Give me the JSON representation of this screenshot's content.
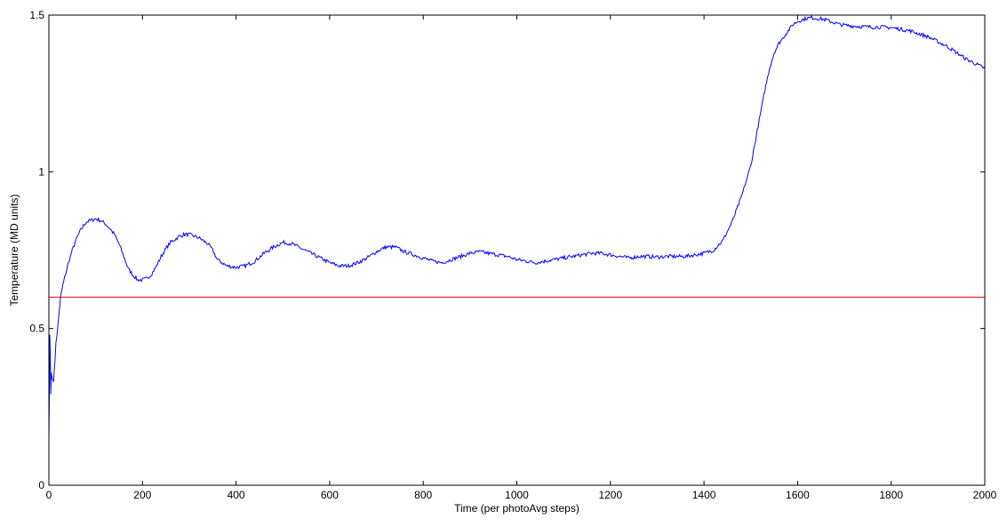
{
  "chart_data": {
    "type": "line",
    "title": "",
    "xlabel": "Time (per photoAvg steps)",
    "ylabel": "Temperature (MD units)",
    "xlim": [
      0,
      2000
    ],
    "ylim": [
      0,
      1.5
    ],
    "xticks": [
      0,
      200,
      400,
      600,
      800,
      1000,
      1200,
      1400,
      1600,
      1800,
      2000
    ],
    "yticks": [
      0,
      0.5,
      1,
      1.5
    ],
    "xtick_labels": [
      "0",
      "200",
      "400",
      "600",
      "800",
      "1000",
      "1200",
      "1400",
      "1600",
      "1800",
      "2000"
    ],
    "ytick_labels": [
      "0",
      "0.5",
      "1",
      "1.5"
    ],
    "grid": false,
    "series": [
      {
        "color": "#0000ff",
        "x": [
          0,
          1,
          2,
          3,
          4,
          5,
          7,
          10,
          15,
          20,
          25,
          30,
          40,
          50,
          60,
          70,
          80,
          90,
          100,
          110,
          120,
          130,
          140,
          150,
          160,
          170,
          180,
          190,
          200,
          210,
          220,
          230,
          240,
          250,
          260,
          270,
          280,
          290,
          300,
          320,
          340,
          350,
          360,
          380,
          400,
          420,
          440,
          460,
          480,
          500,
          520,
          540,
          560,
          580,
          600,
          620,
          640,
          660,
          680,
          700,
          720,
          740,
          760,
          780,
          800,
          820,
          840,
          860,
          880,
          900,
          920,
          940,
          960,
          980,
          1000,
          1020,
          1040,
          1060,
          1080,
          1100,
          1120,
          1140,
          1160,
          1180,
          1200,
          1220,
          1240,
          1260,
          1280,
          1300,
          1320,
          1340,
          1360,
          1380,
          1400,
          1420,
          1440,
          1460,
          1480,
          1500,
          1510,
          1520,
          1530,
          1540,
          1550,
          1560,
          1570,
          1580,
          1590,
          1600,
          1610,
          1620,
          1630,
          1640,
          1650,
          1660,
          1670,
          1680,
          1690,
          1700,
          1720,
          1740,
          1760,
          1780,
          1800,
          1820,
          1840,
          1860,
          1880,
          1900,
          1920,
          1940,
          1960,
          1980,
          2000
        ],
        "y": [
          0.15,
          0.3,
          0.48,
          0.42,
          0.29,
          0.36,
          0.34,
          0.33,
          0.45,
          0.52,
          0.6,
          0.64,
          0.7,
          0.75,
          0.79,
          0.82,
          0.84,
          0.845,
          0.85,
          0.845,
          0.835,
          0.82,
          0.8,
          0.77,
          0.73,
          0.69,
          0.67,
          0.655,
          0.655,
          0.66,
          0.675,
          0.7,
          0.73,
          0.755,
          0.775,
          0.785,
          0.795,
          0.8,
          0.8,
          0.79,
          0.77,
          0.75,
          0.72,
          0.7,
          0.695,
          0.7,
          0.715,
          0.74,
          0.76,
          0.775,
          0.77,
          0.755,
          0.74,
          0.725,
          0.71,
          0.7,
          0.7,
          0.71,
          0.725,
          0.745,
          0.76,
          0.76,
          0.745,
          0.735,
          0.725,
          0.715,
          0.71,
          0.72,
          0.73,
          0.74,
          0.745,
          0.74,
          0.735,
          0.73,
          0.72,
          0.715,
          0.71,
          0.715,
          0.72,
          0.725,
          0.73,
          0.735,
          0.74,
          0.74,
          0.735,
          0.73,
          0.725,
          0.73,
          0.73,
          0.728,
          0.73,
          0.73,
          0.73,
          0.735,
          0.74,
          0.75,
          0.78,
          0.84,
          0.92,
          1.02,
          1.1,
          1.18,
          1.26,
          1.33,
          1.38,
          1.41,
          1.43,
          1.45,
          1.47,
          1.48,
          1.485,
          1.49,
          1.492,
          1.49,
          1.488,
          1.485,
          1.48,
          1.475,
          1.47,
          1.468,
          1.465,
          1.463,
          1.462,
          1.462,
          1.46,
          1.455,
          1.45,
          1.44,
          1.43,
          1.415,
          1.4,
          1.38,
          1.36,
          1.345,
          1.33
        ]
      },
      {
        "color": "#ff0000",
        "x": [
          0,
          2000
        ],
        "y": [
          0.6,
          0.6
        ]
      }
    ]
  }
}
